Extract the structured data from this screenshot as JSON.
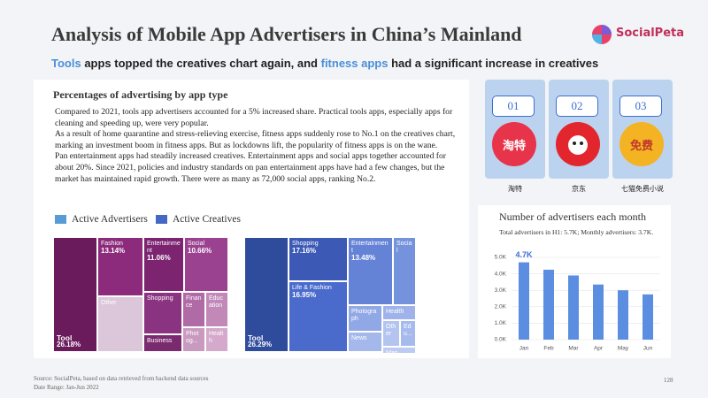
{
  "header": {
    "title": "Analysis of Mobile App Advertisers in China’s Mainland",
    "logo": "SocialPeta",
    "subtitle": [
      "Tools",
      " apps topped the creatives chart again, and ",
      "fitness apps",
      " had a significant increase in creatives"
    ]
  },
  "section": {
    "heading": "Percentages of advertising by app type",
    "paragraphs": [
      "Compared to 2021, tools app advertisers accounted for a 5% increased share. Practical tools apps, especially apps for cleaning and speeding up, were very popular.",
      "As a result of home quarantine and stress-relieving exercise, fitness apps suddenly rose to No.1 on the creatives chart, marking an investment boom in fitness apps. But as lockdowns lift, the popularity of fitness apps is on the wane.",
      "Pan entertainment apps had steadily increased creatives. Entertainment apps and social apps together accounted for about 20%. Since 2021, policies and industry standards on pan entertainment apps have had a few changes, but the market has maintained rapid growth. There were as many as 72,000 social apps, ranking No.2."
    ]
  },
  "legend": [
    {
      "label": "Active Advertisers",
      "color": "#5b9bd5"
    },
    {
      "label": "Active Creatives",
      "color": "#4468c4"
    }
  ],
  "treemaps": [
    {
      "cells": [
        {
          "label": "Tool",
          "share": "26.18%"
        },
        {
          "label": "Fashion",
          "share": "13.14%"
        },
        {
          "label": "Other"
        },
        {
          "label": "Entertainment",
          "share": "11.06%"
        },
        {
          "label": "Social",
          "share": "10.66%"
        },
        {
          "label": "Shopping"
        },
        {
          "label": "Business"
        },
        {
          "label": "Finance"
        },
        {
          "label": "Education"
        },
        {
          "label": "Photog..."
        },
        {
          "label": "Health"
        }
      ]
    },
    {
      "cells": [
        {
          "label": "Tool",
          "share": "26.29%"
        },
        {
          "label": "Shopping",
          "share": "17.16%"
        },
        {
          "label": "Life & Fashion",
          "share": "16.95%"
        },
        {
          "label": "Entertainment",
          "share": "13.48%"
        },
        {
          "label": "Social"
        },
        {
          "label": "Photograph"
        },
        {
          "label": "News"
        },
        {
          "label": "Health"
        },
        {
          "label": "Other"
        },
        {
          "label": "Edu..."
        },
        {
          "label": "Man..."
        }
      ]
    }
  ],
  "apps": [
    {
      "rank": "01",
      "icon": "淘特",
      "name": "淘特"
    },
    {
      "rank": "02",
      "name": "京东"
    },
    {
      "rank": "03",
      "icon": "免费",
      "name": "七猫免费小说"
    }
  ],
  "chart_data": {
    "type": "bar",
    "title": "Number of advertisers each month",
    "subtitle": "Total advertisers in H1: 5.7K; Monthly advertisers: 3.7K.",
    "categories": [
      "Jan",
      "Feb",
      "Mar",
      "Apr",
      "May",
      "Jun"
    ],
    "values": [
      4.7,
      4.25,
      3.9,
      3.35,
      3.0,
      2.75
    ],
    "value_labels": [
      "4.7K",
      null,
      null,
      null,
      null,
      null
    ],
    "color": "#5b8ee0",
    "ylim": [
      0,
      5
    ],
    "yticks": [
      {
        "value": 0,
        "label": "0.0K"
      },
      {
        "value": 1,
        "label": "1.0K"
      },
      {
        "value": 2,
        "label": "2.0K"
      },
      {
        "value": 3,
        "label": "3.0K"
      },
      {
        "value": 4,
        "label": "4.0K"
      },
      {
        "value": 5,
        "label": "5.0K"
      }
    ],
    "grid": true
  },
  "footer": {
    "source": "Source: SocialPeta, based on data retrieved from backend data sources",
    "date_range": "Date Range: Jan-Jun 2022",
    "page": "128"
  }
}
